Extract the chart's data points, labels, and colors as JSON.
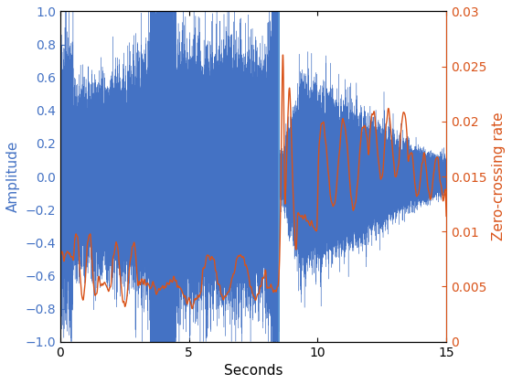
{
  "xlabel": "Seconds",
  "ylabel_left": "Amplitude",
  "ylabel_right": "Zero-crossing rate",
  "xlim": [
    0,
    15
  ],
  "ylim_left": [
    -1,
    1
  ],
  "ylim_right": [
    0,
    0.03
  ],
  "yticks_left": [
    -1,
    -0.8,
    -0.6,
    -0.4,
    -0.2,
    0,
    0.2,
    0.4,
    0.6,
    0.8,
    1
  ],
  "yticks_right": [
    0,
    0.005,
    0.01,
    0.015,
    0.02,
    0.025,
    0.03
  ],
  "xticks": [
    0,
    5,
    10,
    15
  ],
  "waveform_color": "#4472C4",
  "zcr_color": "#D95319",
  "vline_color": "#5B9BD5",
  "vline_x": 8.5,
  "duration": 15.0,
  "seed": 7
}
